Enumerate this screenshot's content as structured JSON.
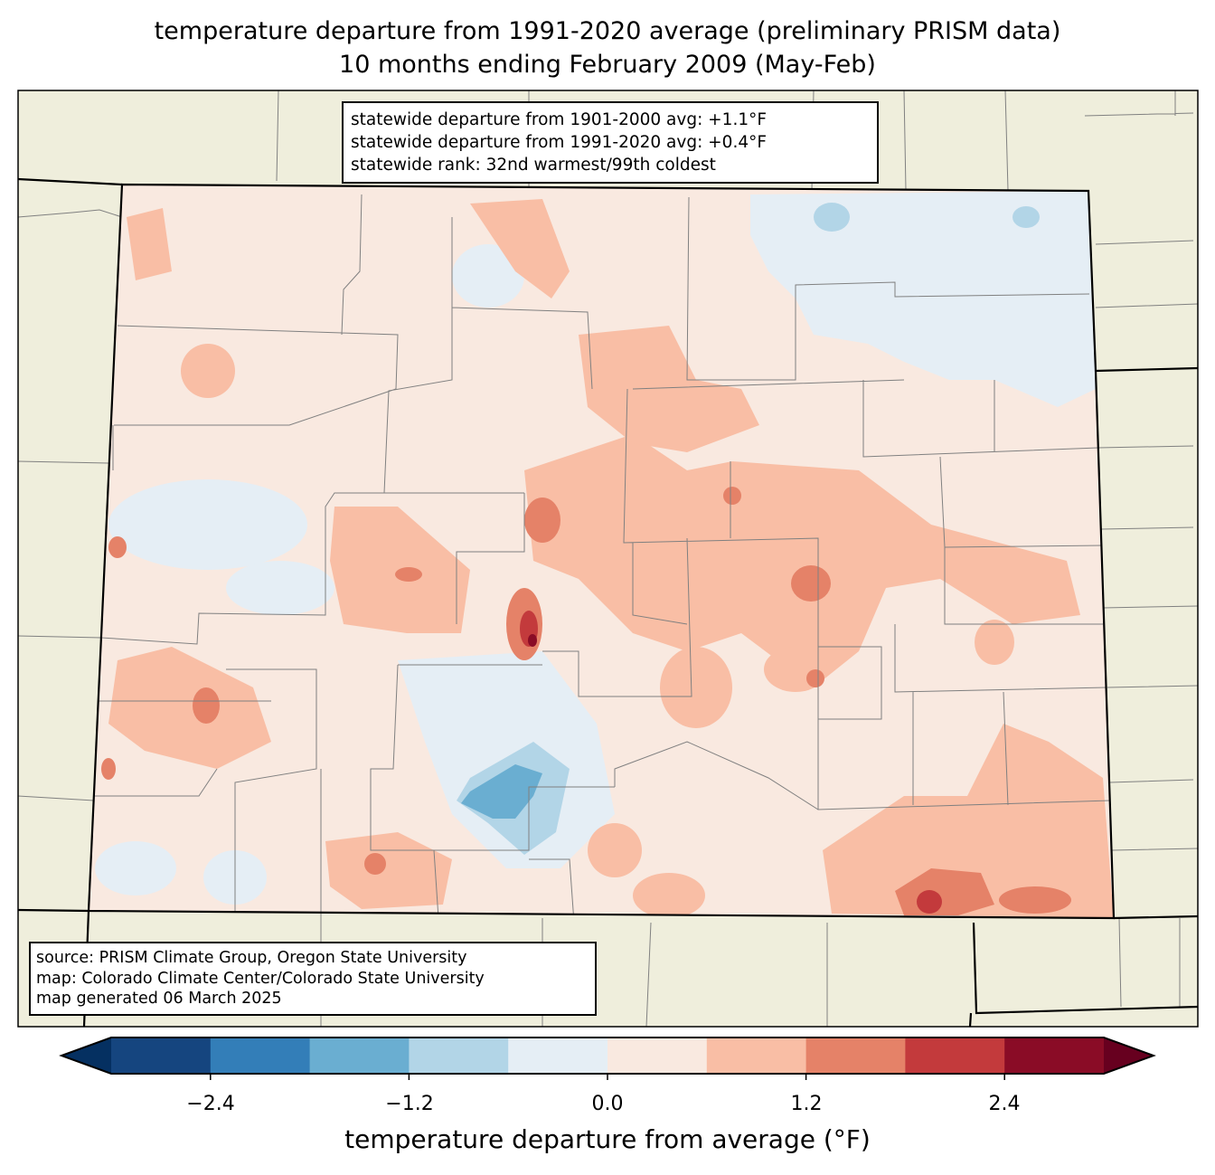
{
  "title": {
    "line1": "temperature departure from 1991-2020 average (preliminary PRISM data)",
    "line2": "10 months ending February 2009 (May-Feb)"
  },
  "stats": {
    "line1": "statewide departure from 1901-2000 avg: +1.1°F",
    "line2": "statewide departure from 1991-2020 avg: +0.4°F",
    "line3": "statewide rank: 32nd warmest/99th coldest"
  },
  "source": {
    "line1": "source: PRISM Climate Group, Oregon State University",
    "line2": "map: Colorado Climate Center/Colorado State University",
    "line3": "map generated 06 March 2025"
  },
  "colorbar": {
    "label": "temperature departure from average (°F)",
    "ticks": [
      "−2.4",
      "−1.2",
      "0.0",
      "1.2",
      "2.4"
    ],
    "levels": [
      -3.0,
      -2.4,
      -1.8,
      -1.2,
      -0.6,
      0.0,
      0.6,
      1.2,
      1.8,
      2.4,
      3.0
    ],
    "colors": [
      "#15457f",
      "#337eb8",
      "#6aaed1",
      "#b2d5e7",
      "#e5eef5",
      "#f9e9e0",
      "#f9bea5",
      "#e58268",
      "#c33a3c",
      "#8a0c26"
    ],
    "extend_low_color": "#053061",
    "extend_high_color": "#67001f"
  },
  "map_colors": {
    "background": "#efeedc",
    "state_line": "#000000",
    "county_line": "#808080"
  }
}
